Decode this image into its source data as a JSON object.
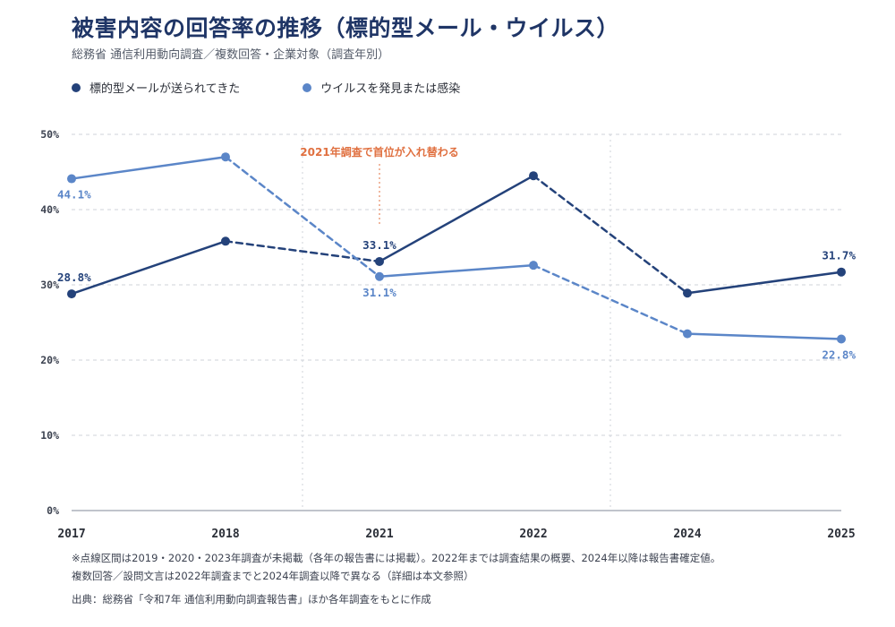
{
  "header": {
    "title": "被害内容の回答率の推移（標的型メール・ウイルス）",
    "subtitle": "総務省 通信利用動向調査／複数回答・企業対象（調査年別）"
  },
  "colors": {
    "series_targeted": "#24427a",
    "series_virus": "#5b86c8",
    "annotation": "#e07040",
    "grid": "#cfd3da"
  },
  "chart_data": {
    "type": "line",
    "categories": [
      "2017",
      "2018",
      "2021",
      "2022",
      "2024",
      "2025"
    ],
    "ylim": [
      0,
      50
    ],
    "yticks": [
      "0%",
      "10%",
      "20%",
      "30%",
      "40%",
      "50%"
    ],
    "grid": true,
    "legend_position": "top-left",
    "series": [
      {
        "name": "標的型メールが送られてきた",
        "values": [
          28.8,
          35.8,
          33.1,
          44.5,
          28.9,
          31.7
        ],
        "segment_dashed": [
          false,
          true,
          false,
          true,
          false
        ],
        "labels": {
          "0": "28.8%",
          "2": "33.1%",
          "5": "31.7%"
        }
      },
      {
        "name": "ウイルスを発見または感染",
        "values": [
          44.1,
          47.0,
          31.1,
          32.6,
          23.5,
          22.8
        ],
        "segment_dashed": [
          false,
          true,
          false,
          true,
          false
        ],
        "labels": {
          "0": "44.1%",
          "2": "31.1%",
          "5": "22.8%"
        }
      }
    ],
    "gap_markers_between": [
      [
        1,
        2
      ],
      [
        3,
        4
      ]
    ],
    "annotation": {
      "text": "2021年調査で首位が入れ替わる",
      "category_index": 2,
      "y_value": 38
    }
  },
  "notes": {
    "line1": "※点線区間は2019・2020・2023年調査が未掲載（各年の報告書には掲載）。2022年までは調査結果の概要、2024年以降は報告書確定値。",
    "line2": "複数回答／設問文言は2022年調査までと2024年調査以降で異なる（詳細は本文参照）",
    "source": "出典：総務省「令和7年 通信利用動向調査報告書」ほか各年調査をもとに作成"
  }
}
